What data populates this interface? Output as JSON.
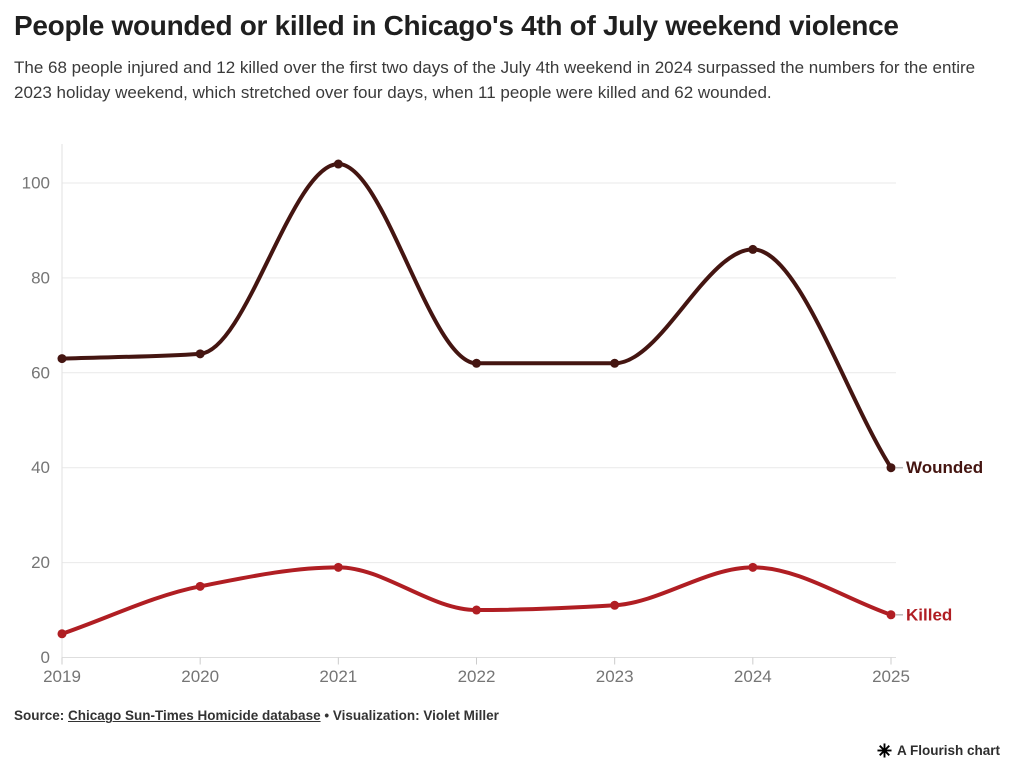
{
  "header": {
    "title": "People wounded or killed in Chicago's 4th of July weekend violence",
    "subtitle": "The 68 people injured and 12 killed over the first two days of the July 4th weekend in 2024 surpassed the numbers for the entire 2023 holiday weekend, which stretched over four days, when 11 people were killed and 62 wounded."
  },
  "footer": {
    "source_prefix": "Source: ",
    "source_link": "Chicago Sun-Times Homicide database",
    "source_suffix": " • Visualization: Violet Miller"
  },
  "attribution": {
    "label": "A Flourish chart",
    "icon": "flourish-asterisk"
  },
  "colors": {
    "title": "#1f1f1f",
    "subtitle": "#3a3a3a",
    "grid": "#e9e9e9",
    "axis": "#e2e2e2",
    "tick_label": "#757575",
    "label_connector": "#bbbbbb",
    "wounded": "#441511",
    "killed": "#b01e23"
  },
  "chart_data": {
    "type": "line",
    "title": "People wounded or killed in Chicago's 4th of July weekend violence",
    "x": [
      2019,
      2020,
      2021,
      2022,
      2023,
      2024,
      2025
    ],
    "series": [
      {
        "name": "Wounded",
        "values": [
          63,
          64,
          104,
          62,
          62,
          86,
          40
        ],
        "color": "#441511"
      },
      {
        "name": "Killed",
        "values": [
          5,
          15,
          19,
          10,
          11,
          19,
          9
        ],
        "color": "#b01e23"
      }
    ],
    "xlabel": "",
    "ylabel": "",
    "ylim": [
      0,
      108
    ],
    "yticks": [
      0,
      20,
      40,
      60,
      80,
      100
    ],
    "grid": true,
    "curve": "monotone",
    "legend_position": "line-end-labels",
    "markers": true
  }
}
